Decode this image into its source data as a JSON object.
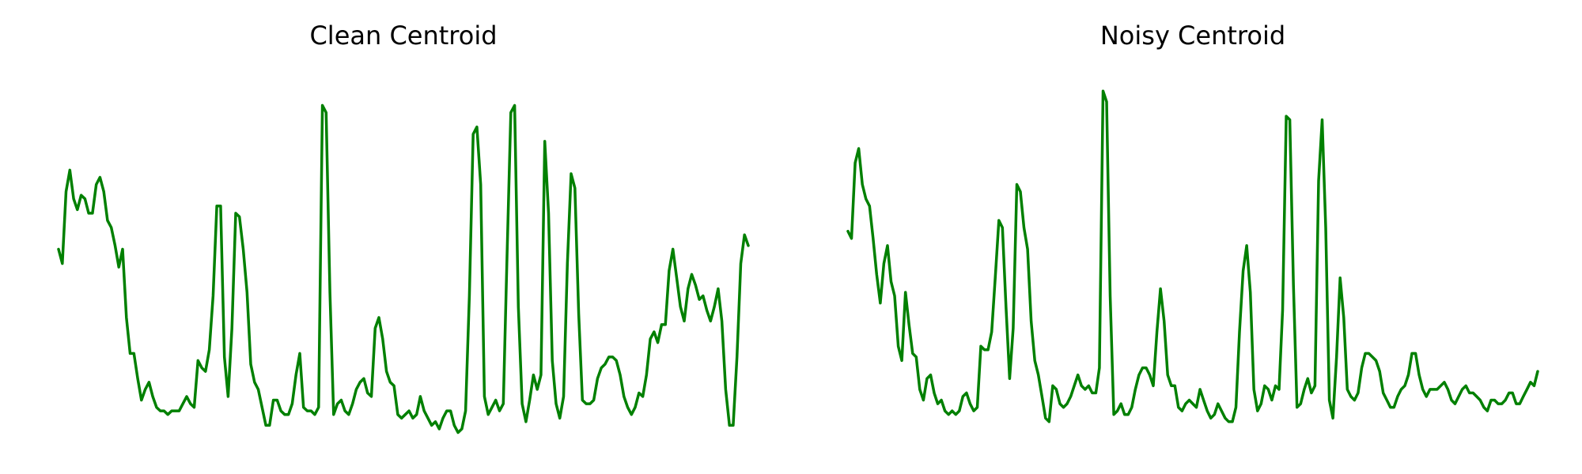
{
  "chart_data": [
    {
      "type": "line",
      "title": "Clean Centroid",
      "color": "#008000",
      "axes_visible": false,
      "grid": false,
      "ylim": [
        0,
        100
      ],
      "series": [
        {
          "values": [
            52,
            48,
            68,
            74,
            66,
            63,
            67,
            66,
            62,
            62,
            70,
            72,
            68,
            60,
            58,
            53,
            47,
            52,
            33,
            23,
            23,
            16,
            10,
            13,
            15,
            11,
            8,
            7,
            7,
            6,
            7,
            7,
            7,
            9,
            11,
            9,
            8,
            21,
            19,
            18,
            24,
            39,
            64,
            64,
            22,
            11,
            30,
            62,
            61,
            52,
            40,
            20,
            15,
            13,
            8,
            3,
            3,
            10,
            10,
            7,
            6,
            6,
            9,
            17,
            23,
            8,
            7,
            7,
            6,
            8,
            92,
            90,
            40,
            6,
            9,
            10,
            7,
            6,
            9,
            13,
            15,
            16,
            12,
            11,
            30,
            33,
            27,
            18,
            15,
            14,
            6,
            5,
            6,
            7,
            5,
            6,
            11,
            7,
            5,
            3,
            4,
            2,
            5,
            7,
            7,
            3,
            1,
            2,
            7,
            39,
            84,
            86,
            70,
            11,
            6,
            8,
            10,
            7,
            9,
            50,
            90,
            92,
            36,
            9,
            4,
            10,
            17,
            13,
            17,
            82,
            62,
            21,
            9,
            5,
            11,
            48,
            73,
            69,
            34,
            10,
            9,
            9,
            10,
            16,
            19,
            20,
            22,
            22,
            21,
            17,
            11,
            8,
            6,
            8,
            12,
            11,
            17,
            27,
            29,
            26,
            31,
            31,
            46,
            52,
            44,
            36,
            32,
            41,
            45,
            42,
            38,
            39,
            35,
            32,
            36,
            41,
            32,
            13,
            3,
            3,
            22,
            48,
            56,
            53
          ]
        }
      ]
    },
    {
      "type": "line",
      "title": "Noisy Centroid",
      "color": "#008000",
      "axes_visible": false,
      "grid": false,
      "ylim": [
        0,
        100
      ],
      "series": [
        {
          "values": [
            57,
            55,
            76,
            80,
            70,
            66,
            64,
            55,
            45,
            37,
            48,
            53,
            43,
            39,
            25,
            21,
            40,
            31,
            23,
            22,
            13,
            10,
            16,
            17,
            12,
            9,
            10,
            7,
            6,
            7,
            6,
            7,
            11,
            12,
            9,
            7,
            8,
            25,
            24,
            24,
            29,
            44,
            60,
            58,
            36,
            16,
            30,
            70,
            68,
            58,
            52,
            32,
            21,
            17,
            11,
            5,
            4,
            14,
            13,
            9,
            8,
            9,
            11,
            14,
            17,
            14,
            13,
            14,
            12,
            12,
            19,
            96,
            93,
            39,
            6,
            7,
            9,
            6,
            6,
            8,
            13,
            17,
            19,
            19,
            17,
            14,
            29,
            41,
            32,
            17,
            14,
            14,
            8,
            7,
            9,
            10,
            9,
            8,
            13,
            10,
            7,
            5,
            6,
            9,
            7,
            5,
            4,
            4,
            8,
            29,
            46,
            53,
            40,
            13,
            7,
            9,
            14,
            13,
            10,
            14,
            13,
            35,
            89,
            88,
            42,
            8,
            9,
            13,
            16,
            12,
            14,
            71,
            88,
            58,
            10,
            5,
            22,
            44,
            33,
            13,
            11,
            10,
            12,
            19,
            23,
            23,
            22,
            21,
            18,
            12,
            10,
            8,
            8,
            11,
            13,
            14,
            17,
            23,
            23,
            17,
            13,
            11,
            13,
            13,
            13,
            14,
            15,
            13,
            10,
            9,
            11,
            13,
            14,
            12,
            12,
            11,
            10,
            8,
            7,
            10,
            10,
            9,
            9,
            10,
            12,
            12,
            9,
            9,
            11,
            13,
            15,
            14,
            18
          ]
        }
      ]
    }
  ]
}
